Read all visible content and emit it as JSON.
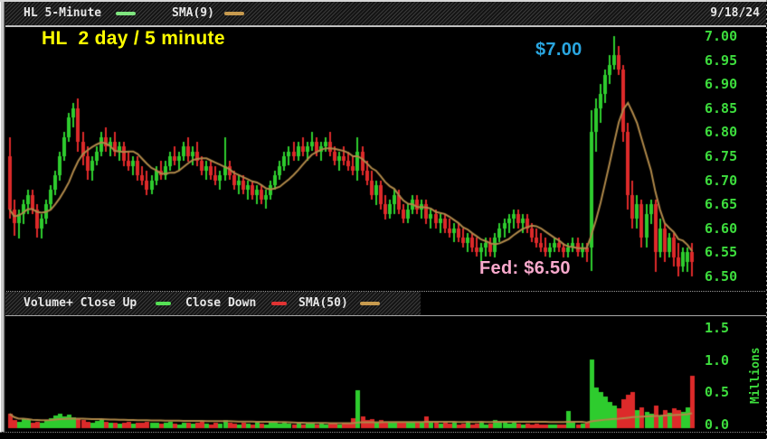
{
  "window": {
    "date": "9/18/24"
  },
  "price_panel": {
    "legend": [
      {
        "label": "HL 5-Minute",
        "swatch": "#7fe57f"
      },
      {
        "label": "SMA(9)",
        "swatch": "#c79a4e"
      }
    ],
    "annotations": {
      "title": {
        "text": "HL  2 day / 5 minute",
        "color": "#ffff00"
      },
      "high": {
        "text": "$7.00",
        "color": "#2aa6e0"
      },
      "fed": {
        "text": "Fed: $6.50",
        "color": "#f8a9cc"
      }
    }
  },
  "volume_panel": {
    "legend": [
      {
        "label": "Volume+ Close Up",
        "swatch": "#55e055"
      },
      {
        "label": "Close Down",
        "swatch": "#e03333"
      },
      {
        "label": "SMA(50)",
        "swatch": "#c79a4e"
      }
    ],
    "axis_unit": "Millions"
  },
  "colors": {
    "up": "#2ecc2e",
    "down": "#dd2a2a",
    "sma": "#b0894a",
    "axis_text": "#3ddc3d",
    "legend_text": "#e6e6e6",
    "background": "#000000"
  },
  "chart_data": [
    {
      "type": "candlestick",
      "symbol": "HL",
      "interval": "5-minute",
      "span": "2 day",
      "overlay": "SMA(9)",
      "sma_period": 9,
      "date": "9/18/24",
      "y_ticks": [
        7.0,
        6.95,
        6.9,
        6.85,
        6.8,
        6.75,
        6.7,
        6.65,
        6.6,
        6.55,
        6.5
      ],
      "ylim": [
        6.47,
        7.02
      ],
      "ohlc": [
        [
          6.75,
          6.79,
          6.62,
          6.64
        ],
        [
          6.64,
          6.66,
          6.585,
          6.61
        ],
        [
          6.61,
          6.64,
          6.58,
          6.63
        ],
        [
          6.63,
          6.66,
          6.61,
          6.65
        ],
        [
          6.65,
          6.68,
          6.63,
          6.67
        ],
        [
          6.67,
          6.68,
          6.63,
          6.64
        ],
        [
          6.64,
          6.65,
          6.58,
          6.6
        ],
        [
          6.6,
          6.63,
          6.58,
          6.62
        ],
        [
          6.62,
          6.66,
          6.61,
          6.65
        ],
        [
          6.65,
          6.69,
          6.64,
          6.68
        ],
        [
          6.68,
          6.72,
          6.67,
          6.71
        ],
        [
          6.71,
          6.76,
          6.7,
          6.75
        ],
        [
          6.75,
          6.8,
          6.74,
          6.79
        ],
        [
          6.79,
          6.84,
          6.78,
          6.83
        ],
        [
          6.83,
          6.86,
          6.81,
          6.85
        ],
        [
          6.85,
          6.87,
          6.76,
          6.78
        ],
        [
          6.78,
          6.8,
          6.73,
          6.75
        ],
        [
          6.75,
          6.77,
          6.7,
          6.72
        ],
        [
          6.72,
          6.75,
          6.7,
          6.74
        ],
        [
          6.74,
          6.77,
          6.73,
          6.76
        ],
        [
          6.76,
          6.8,
          6.75,
          6.79
        ],
        [
          6.79,
          6.81,
          6.76,
          6.77
        ],
        [
          6.77,
          6.79,
          6.75,
          6.78
        ],
        [
          6.78,
          6.8,
          6.75,
          6.76
        ],
        [
          6.76,
          6.78,
          6.74,
          6.77
        ],
        [
          6.77,
          6.78,
          6.73,
          6.74
        ],
        [
          6.74,
          6.76,
          6.72,
          6.73
        ],
        [
          6.73,
          6.75,
          6.71,
          6.74
        ],
        [
          6.74,
          6.75,
          6.7,
          6.71
        ],
        [
          6.71,
          6.73,
          6.69,
          6.7
        ],
        [
          6.7,
          6.72,
          6.67,
          6.68
        ],
        [
          6.68,
          6.71,
          6.67,
          6.7
        ],
        [
          6.7,
          6.73,
          6.69,
          6.72
        ],
        [
          6.72,
          6.74,
          6.7,
          6.71
        ],
        [
          6.71,
          6.74,
          6.7,
          6.73
        ],
        [
          6.73,
          6.76,
          6.72,
          6.75
        ],
        [
          6.75,
          6.77,
          6.73,
          6.74
        ],
        [
          6.74,
          6.76,
          6.72,
          6.75
        ],
        [
          6.75,
          6.78,
          6.74,
          6.77
        ],
        [
          6.77,
          6.79,
          6.74,
          6.75
        ],
        [
          6.75,
          6.77,
          6.73,
          6.76
        ],
        [
          6.76,
          6.78,
          6.73,
          6.74
        ],
        [
          6.74,
          6.75,
          6.71,
          6.72
        ],
        [
          6.72,
          6.74,
          6.7,
          6.73
        ],
        [
          6.73,
          6.74,
          6.7,
          6.71
        ],
        [
          6.71,
          6.73,
          6.69,
          6.7
        ],
        [
          6.7,
          6.72,
          6.68,
          6.71
        ],
        [
          6.71,
          6.79,
          6.7,
          6.73
        ],
        [
          6.73,
          6.74,
          6.7,
          6.71
        ],
        [
          6.71,
          6.72,
          6.68,
          6.69
        ],
        [
          6.69,
          6.71,
          6.67,
          6.7
        ],
        [
          6.7,
          6.71,
          6.67,
          6.68
        ],
        [
          6.68,
          6.7,
          6.66,
          6.69
        ],
        [
          6.69,
          6.7,
          6.66,
          6.67
        ],
        [
          6.67,
          6.69,
          6.65,
          6.68
        ],
        [
          6.68,
          6.69,
          6.65,
          6.66
        ],
        [
          6.66,
          6.68,
          6.64,
          6.67
        ],
        [
          6.67,
          6.7,
          6.66,
          6.69
        ],
        [
          6.69,
          6.72,
          6.68,
          6.71
        ],
        [
          6.71,
          6.74,
          6.7,
          6.73
        ],
        [
          6.73,
          6.76,
          6.72,
          6.75
        ],
        [
          6.75,
          6.77,
          6.73,
          6.76
        ],
        [
          6.76,
          6.78,
          6.74,
          6.75
        ],
        [
          6.75,
          6.78,
          6.74,
          6.77
        ],
        [
          6.77,
          6.79,
          6.75,
          6.76
        ],
        [
          6.76,
          6.78,
          6.74,
          6.77
        ],
        [
          6.77,
          6.8,
          6.76,
          6.78
        ],
        [
          6.78,
          6.79,
          6.75,
          6.76
        ],
        [
          6.76,
          6.78,
          6.74,
          6.77
        ],
        [
          6.77,
          6.79,
          6.76,
          6.78
        ],
        [
          6.78,
          6.8,
          6.75,
          6.76
        ],
        [
          6.76,
          6.77,
          6.73,
          6.74
        ],
        [
          6.74,
          6.76,
          6.72,
          6.75
        ],
        [
          6.75,
          6.77,
          6.73,
          6.74
        ],
        [
          6.74,
          6.76,
          6.72,
          6.73
        ],
        [
          6.73,
          6.75,
          6.71,
          6.72
        ],
        [
          6.72,
          6.79,
          6.7,
          6.76
        ],
        [
          6.76,
          6.77,
          6.71,
          6.72
        ],
        [
          6.72,
          6.74,
          6.69,
          6.7
        ],
        [
          6.7,
          6.72,
          6.66,
          6.67
        ],
        [
          6.67,
          6.7,
          6.65,
          6.69
        ],
        [
          6.69,
          6.7,
          6.64,
          6.65
        ],
        [
          6.65,
          6.67,
          6.62,
          6.63
        ],
        [
          6.63,
          6.66,
          6.62,
          6.65
        ],
        [
          6.65,
          6.68,
          6.63,
          6.67
        ],
        [
          6.67,
          6.68,
          6.63,
          6.64
        ],
        [
          6.64,
          6.65,
          6.61,
          6.62
        ],
        [
          6.62,
          6.65,
          6.61,
          6.64
        ],
        [
          6.64,
          6.67,
          6.63,
          6.66
        ],
        [
          6.66,
          6.67,
          6.63,
          6.64
        ],
        [
          6.64,
          6.66,
          6.62,
          6.65
        ],
        [
          6.65,
          6.66,
          6.61,
          6.62
        ],
        [
          6.62,
          6.64,
          6.6,
          6.63
        ],
        [
          6.63,
          6.64,
          6.6,
          6.61
        ],
        [
          6.61,
          6.63,
          6.59,
          6.62
        ],
        [
          6.62,
          6.63,
          6.59,
          6.6
        ],
        [
          6.6,
          6.62,
          6.58,
          6.59
        ],
        [
          6.59,
          6.61,
          6.57,
          6.6
        ],
        [
          6.6,
          6.61,
          6.57,
          6.58
        ],
        [
          6.58,
          6.6,
          6.56,
          6.57
        ],
        [
          6.57,
          6.59,
          6.55,
          6.58
        ],
        [
          6.58,
          6.59,
          6.55,
          6.56
        ],
        [
          6.56,
          6.58,
          6.54,
          6.55
        ],
        [
          6.55,
          6.57,
          6.53,
          6.56
        ],
        [
          6.56,
          6.58,
          6.54,
          6.57
        ],
        [
          6.57,
          6.58,
          6.54,
          6.55
        ],
        [
          6.55,
          6.59,
          6.54,
          6.58
        ],
        [
          6.58,
          6.61,
          6.57,
          6.6
        ],
        [
          6.6,
          6.62,
          6.58,
          6.61
        ],
        [
          6.61,
          6.63,
          6.59,
          6.62
        ],
        [
          6.62,
          6.64,
          6.6,
          6.63
        ],
        [
          6.63,
          6.64,
          6.6,
          6.61
        ],
        [
          6.61,
          6.63,
          6.59,
          6.62
        ],
        [
          6.62,
          6.63,
          6.59,
          6.6
        ],
        [
          6.6,
          6.61,
          6.57,
          6.58
        ],
        [
          6.58,
          6.6,
          6.56,
          6.57
        ],
        [
          6.57,
          6.59,
          6.55,
          6.56
        ],
        [
          6.56,
          6.58,
          6.54,
          6.55
        ],
        [
          6.55,
          6.57,
          6.54,
          6.56
        ],
        [
          6.56,
          6.58,
          6.55,
          6.57
        ],
        [
          6.57,
          6.58,
          6.55,
          6.56
        ],
        [
          6.56,
          6.57,
          6.54,
          6.55
        ],
        [
          6.55,
          6.57,
          6.54,
          6.56
        ],
        [
          6.56,
          6.58,
          6.55,
          6.57
        ],
        [
          6.57,
          6.58,
          6.54,
          6.55
        ],
        [
          6.55,
          6.57,
          6.54,
          6.56
        ],
        [
          6.56,
          6.57,
          6.53,
          6.55
        ],
        [
          6.56,
          6.845,
          6.51,
          6.8
        ],
        [
          6.8,
          6.87,
          6.76,
          6.85
        ],
        [
          6.85,
          6.9,
          6.82,
          6.88
        ],
        [
          6.88,
          6.93,
          6.86,
          6.92
        ],
        [
          6.92,
          6.96,
          6.9,
          6.94
        ],
        [
          6.94,
          7.0,
          6.93,
          6.96
        ],
        [
          6.96,
          6.98,
          6.92,
          6.93
        ],
        [
          6.93,
          6.94,
          6.78,
          6.8
        ],
        [
          6.8,
          6.82,
          6.64,
          6.67
        ],
        [
          6.67,
          6.7,
          6.6,
          6.62
        ],
        [
          6.62,
          6.67,
          6.6,
          6.65
        ],
        [
          6.65,
          6.66,
          6.56,
          6.58
        ],
        [
          6.58,
          6.65,
          6.56,
          6.63
        ],
        [
          6.63,
          6.66,
          6.61,
          6.65
        ],
        [
          6.65,
          6.66,
          6.51,
          6.55
        ],
        [
          6.55,
          6.62,
          6.54,
          6.6
        ],
        [
          6.6,
          6.61,
          6.53,
          6.55
        ],
        [
          6.55,
          6.59,
          6.54,
          6.58
        ],
        [
          6.58,
          6.59,
          6.52,
          6.54
        ],
        [
          6.54,
          6.57,
          6.5,
          6.52
        ],
        [
          6.52,
          6.56,
          6.51,
          6.55
        ],
        [
          6.53,
          6.56,
          6.51,
          6.55
        ],
        [
          6.55,
          6.57,
          6.5,
          6.53
        ]
      ]
    },
    {
      "type": "bar",
      "title": "Volume",
      "overlay": "SMA(50)",
      "sma_period": 50,
      "unit": "Millions",
      "y_ticks": [
        1.5,
        1.0,
        0.5,
        0.0
      ],
      "ylim": [
        0,
        1.6
      ],
      "values": [
        0.22,
        0.12,
        0.1,
        0.14,
        0.12,
        0.08,
        0.1,
        0.09,
        0.12,
        0.15,
        0.2,
        0.22,
        0.18,
        0.21,
        0.16,
        0.14,
        0.12,
        0.1,
        0.09,
        0.11,
        0.12,
        0.1,
        0.08,
        0.09,
        0.07,
        0.08,
        0.1,
        0.07,
        0.09,
        0.08,
        0.1,
        0.08,
        0.09,
        0.07,
        0.08,
        0.1,
        0.07,
        0.06,
        0.08,
        0.09,
        0.07,
        0.08,
        0.1,
        0.07,
        0.06,
        0.08,
        0.07,
        0.12,
        0.08,
        0.07,
        0.06,
        0.08,
        0.07,
        0.06,
        0.08,
        0.07,
        0.06,
        0.08,
        0.09,
        0.07,
        0.08,
        0.07,
        0.06,
        0.08,
        0.06,
        0.07,
        0.08,
        0.06,
        0.07,
        0.06,
        0.08,
        0.07,
        0.06,
        0.07,
        0.08,
        0.15,
        0.58,
        0.18,
        0.12,
        0.14,
        0.1,
        0.12,
        0.1,
        0.08,
        0.09,
        0.1,
        0.1,
        0.08,
        0.09,
        0.08,
        0.1,
        0.18,
        0.09,
        0.08,
        0.07,
        0.08,
        0.07,
        0.08,
        0.06,
        0.07,
        0.08,
        0.06,
        0.07,
        0.08,
        0.06,
        0.07,
        0.12,
        0.09,
        0.08,
        0.07,
        0.08,
        0.07,
        0.06,
        0.07,
        0.06,
        0.07,
        0.05,
        0.06,
        0.05,
        0.06,
        0.05,
        0.06,
        0.26,
        0.08,
        0.06,
        0.07,
        0.1,
        1.05,
        0.62,
        0.55,
        0.48,
        0.4,
        0.35,
        0.3,
        0.45,
        0.52,
        0.55,
        0.28,
        0.32,
        0.25,
        0.22,
        0.35,
        0.2,
        0.28,
        0.24,
        0.3,
        0.28,
        0.25,
        0.32,
        0.8
      ]
    }
  ]
}
